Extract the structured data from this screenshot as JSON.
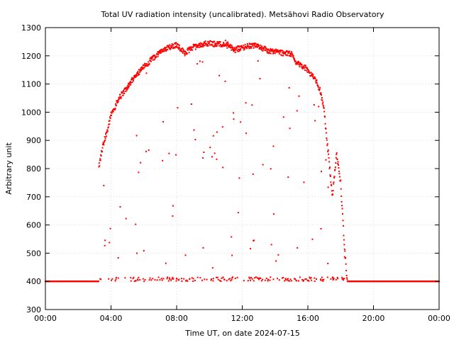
{
  "chart_data": {
    "type": "scatter",
    "title": "Total UV radiation intensity (uncalibrated). Metsähovi Radio Observatory",
    "xlabel": "Time UT, on date 2024-07-15",
    "ylabel": "Arbitrary unit",
    "x_unit": "hours",
    "xlim": [
      0,
      24
    ],
    "ylim": [
      300,
      1300
    ],
    "x_ticks": [
      {
        "value": 0,
        "label": "00:00"
      },
      {
        "value": 4,
        "label": "04:00"
      },
      {
        "value": 8,
        "label": "08:00"
      },
      {
        "value": 12,
        "label": "12:00"
      },
      {
        "value": 16,
        "label": "16:00"
      },
      {
        "value": 20,
        "label": "20:00"
      },
      {
        "value": 24,
        "label": "00:00"
      }
    ],
    "y_ticks": [
      300,
      400,
      500,
      600,
      700,
      800,
      900,
      1000,
      1100,
      1200,
      1300
    ],
    "grid": true,
    "marker_color": "#ff0000",
    "baseline": 400,
    "envelope": [
      [
        3.25,
        800
      ],
      [
        3.5,
        880
      ],
      [
        3.75,
        930
      ],
      [
        4.0,
        990
      ],
      [
        4.25,
        1020
      ],
      [
        4.5,
        1050
      ],
      [
        4.75,
        1070
      ],
      [
        5.0,
        1090
      ],
      [
        5.5,
        1130
      ],
      [
        6.0,
        1160
      ],
      [
        6.5,
        1190
      ],
      [
        7.0,
        1210
      ],
      [
        7.5,
        1230
      ],
      [
        8.0,
        1240
      ],
      [
        8.5,
        1210
      ],
      [
        9.0,
        1230
      ],
      [
        9.5,
        1240
      ],
      [
        10.0,
        1245
      ],
      [
        10.5,
        1240
      ],
      [
        11.0,
        1245
      ],
      [
        11.5,
        1220
      ],
      [
        12.0,
        1230
      ],
      [
        12.5,
        1235
      ],
      [
        13.0,
        1235
      ],
      [
        13.5,
        1220
      ],
      [
        14.0,
        1215
      ],
      [
        14.5,
        1210
      ],
      [
        15.0,
        1205
      ],
      [
        15.25,
        1180
      ],
      [
        15.5,
        1170
      ],
      [
        16.0,
        1150
      ],
      [
        16.5,
        1110
      ],
      [
        16.75,
        1080
      ],
      [
        17.0,
        1000
      ],
      [
        17.25,
        850
      ],
      [
        17.5,
        700
      ],
      [
        17.75,
        850
      ],
      [
        18.0,
        750
      ],
      [
        18.2,
        550
      ],
      [
        18.4,
        400
      ]
    ],
    "series": [
      {
        "name": "",
        "points": []
      }
    ]
  }
}
